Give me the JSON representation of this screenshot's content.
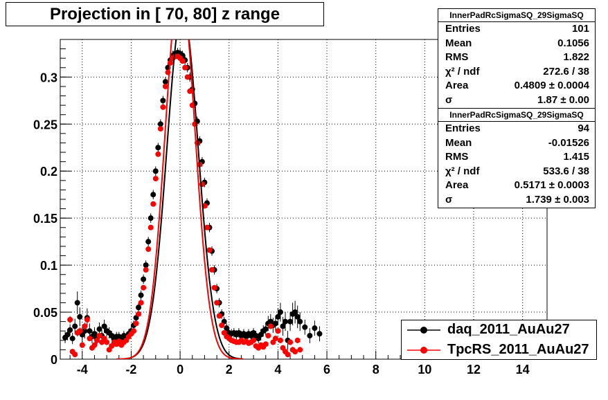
{
  "title": "Projection in [  70,  80] z range",
  "stats_boxes": [
    {
      "header": "InnerPadRcSigmaSQ_29SigmaSQ",
      "rows": [
        {
          "label": "Entries",
          "value": "101"
        },
        {
          "label": "Mean",
          "value": "0.1056"
        },
        {
          "label": "RMS",
          "value": "1.822"
        },
        {
          "label": "χ² / ndf",
          "value": "272.6 / 38"
        },
        {
          "label": "Area",
          "value": "0.4809 ± 0.0004"
        },
        {
          "label": "σ",
          "value": "1.87 ± 0.00"
        }
      ]
    },
    {
      "header": "InnerPadRcSigmaSQ_29SigmaSQ",
      "rows": [
        {
          "label": "Entries",
          "value": "94"
        },
        {
          "label": "Mean",
          "value": "-0.01526"
        },
        {
          "label": "RMS",
          "value": "1.415"
        },
        {
          "label": "χ² / ndf",
          "value": "533.6 / 38"
        },
        {
          "label": "Area",
          "value": "0.5171 ± 0.0003"
        },
        {
          "label": "σ",
          "value": "1.739 ± 0.003"
        }
      ]
    }
  ],
  "legend": [
    {
      "label": "daq_2011_AuAu27",
      "color": "#000000"
    },
    {
      "label": "TpcRS_2011_AuAu27",
      "color": "#ff0000"
    }
  ],
  "chart_data": {
    "type": "scatter",
    "xlim": [
      -4.9,
      15.0
    ],
    "ylim": [
      0,
      0.34
    ],
    "x_ticks": [
      -4,
      -2,
      0,
      2,
      4,
      6,
      8,
      10,
      12,
      14
    ],
    "y_ticks": [
      0,
      0.05,
      0.1,
      0.15,
      0.2,
      0.25,
      0.3
    ],
    "grid": true,
    "legend_position": "bottom-right",
    "series": [
      {
        "name": "daq_2011_AuAu27",
        "color": "#000000",
        "x": [
          -4.7,
          -4.6,
          -4.5,
          -4.4,
          -4.3,
          -4.2,
          -4.1,
          -4.0,
          -3.9,
          -3.8,
          -3.7,
          -3.6,
          -3.5,
          -3.4,
          -3.3,
          -3.2,
          -3.1,
          -3.0,
          -2.9,
          -2.8,
          -2.7,
          -2.6,
          -2.5,
          -2.4,
          -2.3,
          -2.2,
          -2.1,
          -2.0,
          -1.9,
          -1.8,
          -1.7,
          -1.6,
          -1.5,
          -1.4,
          -1.3,
          -1.2,
          -1.1,
          -1.0,
          -0.9,
          -0.8,
          -0.7,
          -0.6,
          -0.5,
          -0.4,
          -0.3,
          -0.2,
          -0.1,
          0.0,
          0.1,
          0.2,
          0.3,
          0.4,
          0.5,
          0.6,
          0.7,
          0.8,
          0.9,
          1.0,
          1.1,
          1.2,
          1.3,
          1.4,
          1.5,
          1.6,
          1.7,
          1.8,
          1.9,
          2.0,
          2.1,
          2.2,
          2.3,
          2.4,
          2.5,
          2.6,
          2.7,
          2.8,
          2.9,
          3.0,
          3.1,
          3.2,
          3.3,
          3.4,
          3.5,
          3.6,
          3.7,
          3.8,
          3.9,
          4.0,
          4.1,
          4.2,
          4.3,
          4.4,
          4.5,
          4.6,
          4.7,
          4.8,
          4.9,
          5.1,
          5.3,
          5.5,
          5.7
        ],
        "y": [
          0.023,
          0.026,
          0.031,
          0.022,
          0.035,
          0.06,
          0.045,
          0.026,
          0.03,
          0.044,
          0.03,
          0.024,
          0.027,
          0.022,
          0.032,
          0.025,
          0.035,
          0.03,
          0.028,
          0.025,
          0.022,
          0.024,
          0.024,
          0.02,
          0.025,
          0.023,
          0.027,
          0.03,
          0.036,
          0.044,
          0.055,
          0.068,
          0.085,
          0.1,
          0.125,
          0.15,
          0.175,
          0.2,
          0.225,
          0.25,
          0.275,
          0.295,
          0.31,
          0.318,
          0.323,
          0.325,
          0.326,
          0.325,
          0.323,
          0.318,
          0.31,
          0.3,
          0.287,
          0.272,
          0.253,
          0.232,
          0.21,
          0.188,
          0.166,
          0.14,
          0.115,
          0.095,
          0.075,
          0.06,
          0.048,
          0.04,
          0.033,
          0.028,
          0.027,
          0.028,
          0.026,
          0.028,
          0.025,
          0.027,
          0.024,
          0.027,
          0.025,
          0.028,
          0.025,
          0.022,
          0.026,
          0.03,
          0.032,
          0.038,
          0.04,
          0.036,
          0.038,
          0.045,
          0.05,
          0.035,
          0.04,
          0.02,
          0.04,
          0.048,
          0.05,
          0.045,
          0.04,
          0.034,
          0.025,
          0.033,
          0.027
        ],
        "err": [
          0.006,
          0.006,
          0.006,
          0.006,
          0.008,
          0.012,
          0.01,
          0.008,
          0.008,
          0.01,
          0.008,
          0.007,
          0.007,
          0.007,
          0.007,
          0.006,
          0.007,
          0.006,
          0.006,
          0.005,
          0.005,
          0.005,
          0.005,
          0.005,
          0.005,
          0.005,
          0.005,
          0.005,
          0.005,
          0.005,
          0.005,
          0.005,
          0.005,
          0.005,
          0.005,
          0.005,
          0.005,
          0.005,
          0.005,
          0.005,
          0.005,
          0.005,
          0.005,
          0.005,
          0.005,
          0.005,
          0.005,
          0.005,
          0.005,
          0.005,
          0.005,
          0.005,
          0.005,
          0.005,
          0.005,
          0.005,
          0.005,
          0.005,
          0.005,
          0.005,
          0.005,
          0.005,
          0.005,
          0.005,
          0.005,
          0.005,
          0.005,
          0.005,
          0.005,
          0.005,
          0.005,
          0.005,
          0.005,
          0.005,
          0.005,
          0.005,
          0.005,
          0.005,
          0.005,
          0.005,
          0.006,
          0.006,
          0.007,
          0.008,
          0.008,
          0.008,
          0.008,
          0.009,
          0.01,
          0.01,
          0.01,
          0.01,
          0.01,
          0.012,
          0.012,
          0.012,
          0.01,
          0.008,
          0.008,
          0.008,
          0.008
        ]
      },
      {
        "name": "TpcRS_2011_AuAu27",
        "color": "#ff0000",
        "x": [
          -4.5,
          -4.4,
          -4.3,
          -4.2,
          -4.1,
          -4.0,
          -3.9,
          -3.8,
          -3.7,
          -3.6,
          -3.5,
          -3.4,
          -3.3,
          -3.2,
          -3.1,
          -3.0,
          -2.9,
          -2.8,
          -2.7,
          -2.6,
          -2.5,
          -2.4,
          -2.3,
          -2.2,
          -2.1,
          -2.0,
          -1.9,
          -1.8,
          -1.7,
          -1.6,
          -1.5,
          -1.4,
          -1.3,
          -1.2,
          -1.1,
          -1.0,
          -0.9,
          -0.8,
          -0.7,
          -0.6,
          -0.5,
          -0.4,
          -0.3,
          -0.2,
          -0.1,
          0.0,
          0.1,
          0.2,
          0.3,
          0.4,
          0.5,
          0.6,
          0.7,
          0.8,
          0.9,
          1.0,
          1.1,
          1.2,
          1.3,
          1.4,
          1.5,
          1.6,
          1.7,
          1.8,
          1.9,
          2.0,
          2.1,
          2.2,
          2.3,
          2.4,
          2.5,
          2.6,
          2.7,
          2.8,
          2.9,
          3.0,
          3.1,
          3.2,
          3.3,
          3.4,
          3.5,
          3.6,
          3.7,
          3.8,
          3.9,
          4.0,
          4.1,
          4.2,
          4.3,
          4.4,
          4.5,
          4.6,
          4.7,
          4.8,
          4.9
        ],
        "y": [
          0.042,
          0.008,
          0.005,
          0.028,
          0.03,
          0.015,
          0.035,
          0.042,
          0.022,
          0.012,
          0.015,
          0.02,
          0.025,
          0.018,
          0.022,
          0.018,
          0.01,
          0.014,
          0.018,
          0.016,
          0.019,
          0.015,
          0.018,
          0.02,
          0.024,
          0.027,
          0.03,
          0.038,
          0.048,
          0.06,
          0.076,
          0.095,
          0.117,
          0.14,
          0.165,
          0.192,
          0.218,
          0.245,
          0.268,
          0.29,
          0.305,
          0.315,
          0.32,
          0.322,
          0.322,
          0.32,
          0.317,
          0.31,
          0.3,
          0.285,
          0.27,
          0.25,
          0.23,
          0.207,
          0.186,
          0.163,
          0.14,
          0.116,
          0.095,
          0.076,
          0.06,
          0.046,
          0.036,
          0.028,
          0.024,
          0.022,
          0.02,
          0.019,
          0.018,
          0.018,
          0.02,
          0.018,
          0.019,
          0.017,
          0.018,
          0.02,
          0.014,
          0.012,
          0.015,
          0.013,
          0.016,
          0.025,
          0.035,
          0.018,
          0.022,
          0.03,
          0.02,
          0.012,
          0.008,
          0.005,
          0.018,
          0.01,
          0.008,
          0.02,
          0.01
        ],
        "err": [
          0.004,
          0.003,
          0.003,
          0.004,
          0.004,
          0.003,
          0.004,
          0.004,
          0.003,
          0.003,
          0.003,
          0.003,
          0.003,
          0.003,
          0.003,
          0.003,
          0.002,
          0.002,
          0.002,
          0.002,
          0.002,
          0.002,
          0.002,
          0.002,
          0.002,
          0.002,
          0.002,
          0.002,
          0.002,
          0.002,
          0.002,
          0.002,
          0.002,
          0.002,
          0.002,
          0.002,
          0.002,
          0.002,
          0.002,
          0.002,
          0.002,
          0.002,
          0.002,
          0.002,
          0.002,
          0.002,
          0.002,
          0.002,
          0.002,
          0.002,
          0.002,
          0.002,
          0.002,
          0.002,
          0.002,
          0.002,
          0.002,
          0.002,
          0.002,
          0.002,
          0.002,
          0.002,
          0.002,
          0.002,
          0.002,
          0.002,
          0.002,
          0.002,
          0.002,
          0.002,
          0.002,
          0.002,
          0.002,
          0.002,
          0.002,
          0.002,
          0.002,
          0.002,
          0.002,
          0.002,
          0.002,
          0.003,
          0.003,
          0.003,
          0.003,
          0.003,
          0.003,
          0.003,
          0.003,
          0.003,
          0.003,
          0.003,
          0.003,
          0.003,
          0.003
        ]
      }
    ],
    "fits": [
      {
        "name": "daq_2011_AuAu27 fit",
        "color": "#000000",
        "amplitude": 0.37,
        "mean": 0.1,
        "sigma": 0.64
      },
      {
        "name": "TpcRS_2011_AuAu27 fit",
        "color": "#ff0000",
        "amplitude": 0.4,
        "mean": 0.0,
        "sigma": 0.61
      }
    ]
  }
}
